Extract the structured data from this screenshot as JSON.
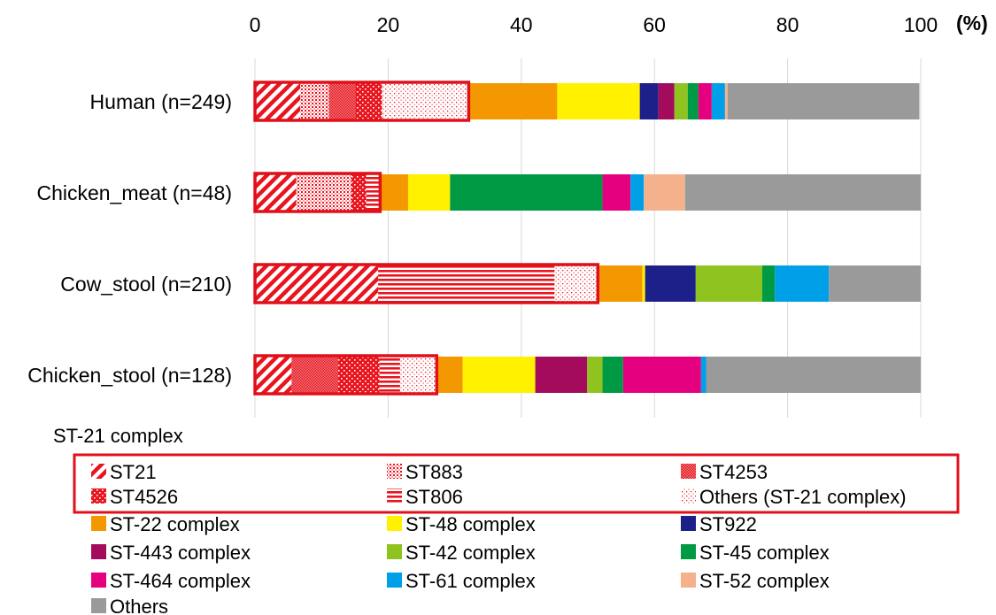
{
  "chart_data": {
    "type": "bar",
    "orientation": "horizontal",
    "stacked": true,
    "unit_label": "(%)",
    "xlim": [
      0,
      100
    ],
    "x_ticks": [
      0,
      20,
      40,
      60,
      80,
      100
    ],
    "grid": true,
    "categories": [
      "Human (n=249)",
      "Chicken_meat (n=48)",
      "Cow_stool (n=210)",
      "Chicken_stool (n=128)"
    ],
    "complex_group_label": "ST-21 complex",
    "series": [
      {
        "name": "ST21",
        "color": "#e8141e",
        "pattern": "diag",
        "complex": true,
        "values": [
          6.8,
          6.2,
          18.5,
          5.5
        ]
      },
      {
        "name": "ST883",
        "color": "#e8141e",
        "pattern": "finedots",
        "complex": true,
        "values": [
          4.3,
          8.3,
          0,
          0
        ]
      },
      {
        "name": "ST4253",
        "color": "#e8141e",
        "pattern": "dense",
        "complex": true,
        "values": [
          4.0,
          0,
          0,
          7.0
        ]
      },
      {
        "name": "ST4526",
        "color": "#e8141e",
        "pattern": "bigdots",
        "complex": true,
        "values": [
          4.0,
          2.2,
          0,
          6.2
        ]
      },
      {
        "name": "ST806",
        "color": "#e8141e",
        "pattern": "hlines",
        "complex": true,
        "values": [
          0,
          2.1,
          26.5,
          3.1
        ]
      },
      {
        "name": "Others (ST-21 complex)",
        "color": "#e8141e",
        "pattern": "sparse",
        "complex": true,
        "values": [
          13.0,
          0,
          6.5,
          5.5
        ]
      },
      {
        "name": "ST-22 complex",
        "color": "#f39800",
        "values": [
          13.3,
          4.2,
          6.7,
          3.9
        ]
      },
      {
        "name": "ST-48 complex",
        "color": "#fff100",
        "values": [
          12.4,
          6.3,
          0.4,
          10.9
        ]
      },
      {
        "name": "ST922",
        "color": "#1d2088",
        "values": [
          2.8,
          0,
          7.6,
          0
        ]
      },
      {
        "name": "ST-443 complex",
        "color": "#a40b5d",
        "values": [
          2.4,
          0,
          0,
          7.8
        ]
      },
      {
        "name": "ST-42 complex",
        "color": "#8fc31f",
        "values": [
          2.0,
          0,
          10.0,
          2.3
        ]
      },
      {
        "name": "ST-45 complex",
        "color": "#009944",
        "values": [
          1.6,
          22.9,
          1.9,
          3.1
        ]
      },
      {
        "name": "ST-464 complex",
        "color": "#e4007f",
        "values": [
          2.0,
          4.2,
          0,
          11.7
        ]
      },
      {
        "name": "ST-61 complex",
        "color": "#00a0e9",
        "values": [
          2.0,
          2.0,
          8.1,
          0.8
        ]
      },
      {
        "name": "ST-52 complex",
        "color": "#f4b18c",
        "values": [
          0.4,
          6.2,
          0,
          0
        ]
      },
      {
        "name": "Others",
        "color": "#9a9a9a",
        "values": [
          28.8,
          35.4,
          13.8,
          32.2
        ]
      }
    ]
  }
}
